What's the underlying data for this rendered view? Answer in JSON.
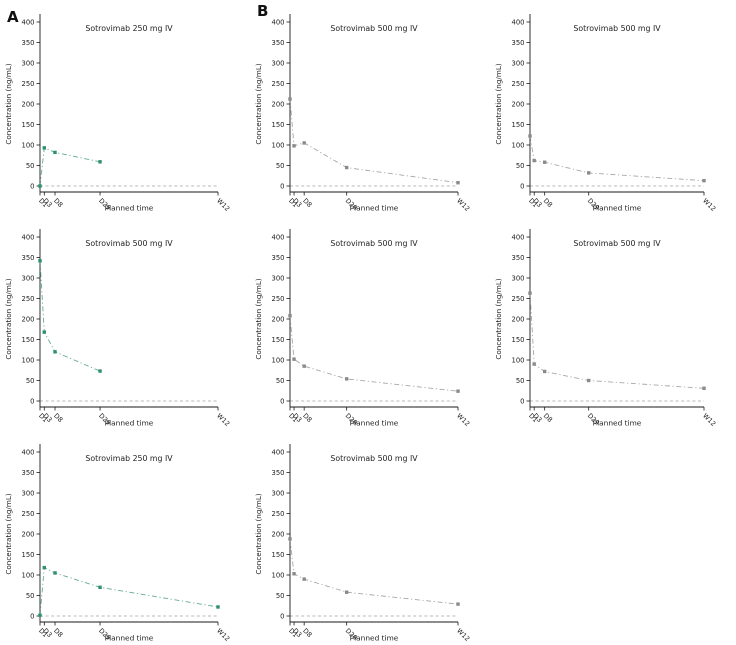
{
  "figure": {
    "panel_a_label": "A",
    "panel_b_label": "B",
    "colors": {
      "panel_a_series": "#2e8f72",
      "panel_b_series": "#8a8a8a",
      "zero_line": "#b8b8b8",
      "axis": "#1a1a1a",
      "title_text": "#222222"
    }
  },
  "chart_data": [
    {
      "id": "a1",
      "type": "line",
      "panel": "A",
      "row": 0,
      "col": 0,
      "title": "Sotrovimab 250 mg IV",
      "ylabel": "Concentration (ng/mL)",
      "xlabel": "Planned time",
      "x_labels": [
        "D1",
        "D3",
        "D8",
        "D29",
        "W12"
      ],
      "x_days": [
        1,
        3,
        8,
        29,
        84
      ],
      "values": [
        0,
        93,
        82,
        59,
        null
      ],
      "ylim": [
        0,
        400
      ],
      "yticks": [
        0,
        50,
        100,
        150,
        200,
        250,
        300,
        350,
        400
      ],
      "color_key": "panel_a_series"
    },
    {
      "id": "b1",
      "type": "line",
      "panel": "B",
      "row": 0,
      "col": 1,
      "title": "Sotrovimab 500 mg IV",
      "ylabel": "Concentration (ng/mL)",
      "xlabel": "Planned time",
      "x_labels": [
        "D1",
        "D3",
        "D8",
        "D29",
        "W12"
      ],
      "x_days": [
        1,
        3,
        8,
        29,
        84
      ],
      "values": [
        212,
        98,
        105,
        45,
        8
      ],
      "ylim": [
        0,
        400
      ],
      "yticks": [
        0,
        50,
        100,
        150,
        200,
        250,
        300,
        350,
        400
      ],
      "color_key": "panel_b_series"
    },
    {
      "id": "b2",
      "type": "line",
      "panel": "B",
      "row": 0,
      "col": 2,
      "title": "Sotrovimab 500 mg IV",
      "ylabel": "Concentration (ng/mL)",
      "xlabel": "Planned time",
      "x_labels": [
        "D1",
        "D3",
        "D8",
        "D29",
        "W12"
      ],
      "x_days": [
        1,
        3,
        8,
        29,
        84
      ],
      "values": [
        122,
        62,
        58,
        32,
        13
      ],
      "ylim": [
        0,
        400
      ],
      "yticks": [
        0,
        50,
        100,
        150,
        200,
        250,
        300,
        350,
        400
      ],
      "color_key": "panel_b_series"
    },
    {
      "id": "a2",
      "type": "line",
      "panel": "A",
      "row": 1,
      "col": 0,
      "title": "Sotrovimab 500 mg IV",
      "ylabel": "Concentration (ng/mL)",
      "xlabel": "Planned time",
      "x_labels": [
        "D1",
        "D3",
        "D8",
        "D29",
        "W12"
      ],
      "x_days": [
        1,
        3,
        8,
        29,
        84
      ],
      "values": [
        342,
        168,
        120,
        73,
        null
      ],
      "ylim": [
        0,
        400
      ],
      "yticks": [
        0,
        50,
        100,
        150,
        200,
        250,
        300,
        350,
        400
      ],
      "color_key": "panel_a_series"
    },
    {
      "id": "b3",
      "type": "line",
      "panel": "B",
      "row": 1,
      "col": 1,
      "title": "Sotrovimab 500 mg IV",
      "ylabel": "Concentration (ng/mL)",
      "xlabel": "Planned time",
      "x_labels": [
        "D1",
        "D3",
        "D8",
        "D29",
        "W12"
      ],
      "x_days": [
        1,
        3,
        8,
        29,
        84
      ],
      "values": [
        208,
        102,
        85,
        54,
        24
      ],
      "ylim": [
        0,
        400
      ],
      "yticks": [
        0,
        50,
        100,
        150,
        200,
        250,
        300,
        350,
        400
      ],
      "color_key": "panel_b_series"
    },
    {
      "id": "b4",
      "type": "line",
      "panel": "B",
      "row": 1,
      "col": 2,
      "title": "Sotrovimab 500 mg IV",
      "ylabel": "Concentration (ng/mL)",
      "xlabel": "Planned time",
      "x_labels": [
        "D1",
        "D3",
        "D8",
        "D29",
        "W12"
      ],
      "x_days": [
        1,
        3,
        8,
        29,
        84
      ],
      "values": [
        263,
        90,
        72,
        50,
        31
      ],
      "ylim": [
        0,
        400
      ],
      "yticks": [
        0,
        50,
        100,
        150,
        200,
        250,
        300,
        350,
        400
      ],
      "color_key": "panel_b_series"
    },
    {
      "id": "a3",
      "type": "line",
      "panel": "A",
      "row": 2,
      "col": 0,
      "title": "Sotrovimab 250 mg IV",
      "ylabel": "Concentration (ng/mL)",
      "xlabel": "Planned time",
      "x_labels": [
        "D1",
        "D3",
        "D8",
        "D29",
        "W12"
      ],
      "x_days": [
        1,
        3,
        8,
        29,
        84
      ],
      "values": [
        2,
        118,
        105,
        70,
        22
      ],
      "ylim": [
        0,
        400
      ],
      "yticks": [
        0,
        50,
        100,
        150,
        200,
        250,
        300,
        350,
        400
      ],
      "color_key": "panel_a_series"
    },
    {
      "id": "b5",
      "type": "line",
      "panel": "B",
      "row": 2,
      "col": 1,
      "title": "Sotrovimab 500 mg IV",
      "ylabel": "Concentration (ng/mL)",
      "xlabel": "Planned time",
      "x_labels": [
        "D1",
        "D3",
        "D8",
        "D29",
        "W12"
      ],
      "x_days": [
        1,
        3,
        8,
        29,
        84
      ],
      "values": [
        188,
        103,
        90,
        58,
        29
      ],
      "ylim": [
        0,
        400
      ],
      "yticks": [
        0,
        50,
        100,
        150,
        200,
        250,
        300,
        350,
        400
      ],
      "color_key": "panel_b_series"
    }
  ]
}
